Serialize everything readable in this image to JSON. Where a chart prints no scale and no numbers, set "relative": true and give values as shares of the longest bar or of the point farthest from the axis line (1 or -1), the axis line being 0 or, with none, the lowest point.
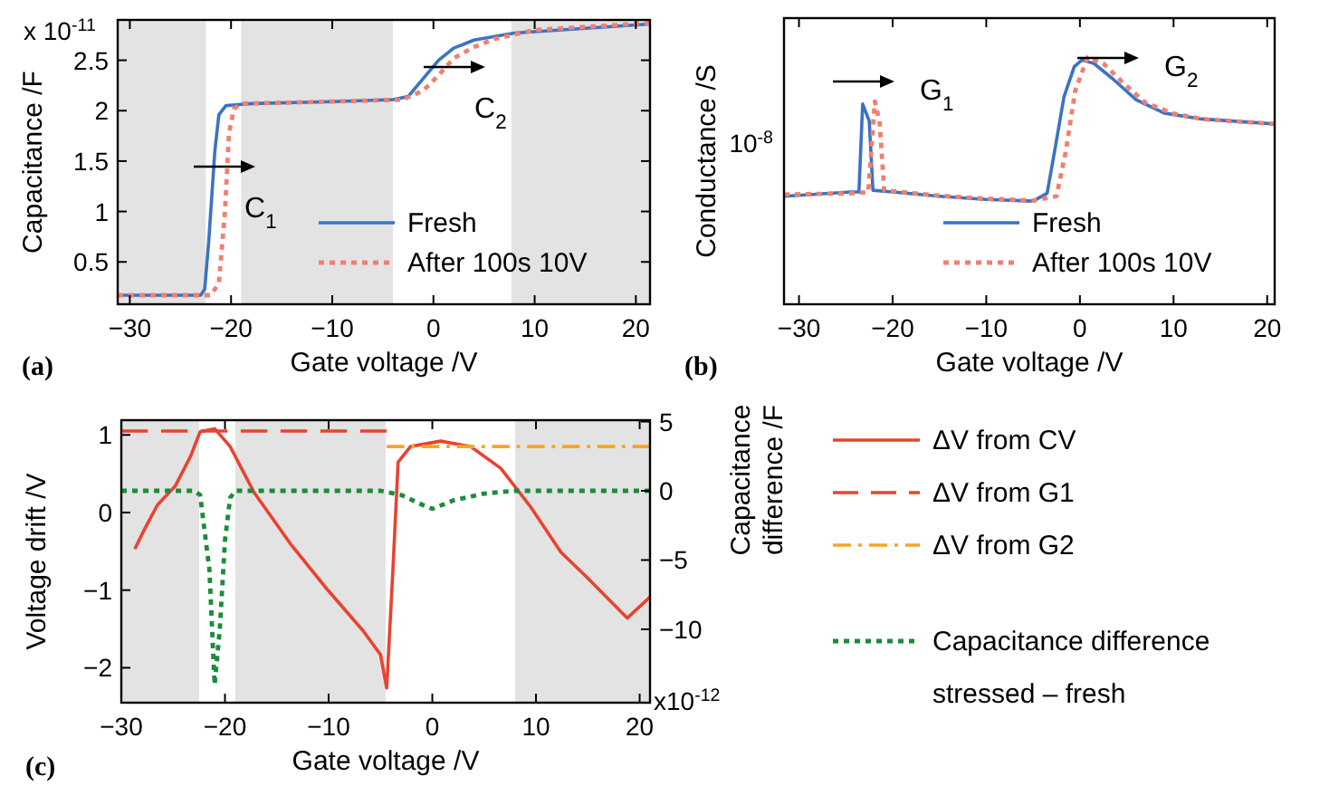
{
  "chart_data": [
    {
      "type": "line",
      "xlabel": "Gate voltage /V",
      "ylabel": "Capacitance /F",
      "xlim": [
        -31.2,
        21.4
      ],
      "ylim": [
        0.08,
        2.9
      ],
      "xticks": [
        -30,
        -20,
        -10,
        0,
        10,
        20
      ],
      "yticks": [
        0.5,
        1,
        1.5,
        2,
        2.5
      ],
      "legend": "bottom right",
      "annotations": [
        "(a)",
        "x 10$^{-11}$",
        "C$_{1}$",
        "C$_{2}$"
      ],
      "bands": [
        {
          "axis": "x",
          "from": -31.2,
          "to": -22.5,
          "color": "#e3e3e3"
        },
        {
          "axis": "x",
          "from": -19,
          "to": -4,
          "color": "#e3e3e3"
        },
        {
          "axis": "x",
          "from": 7.7,
          "to": 21.4,
          "color": "#e3e3e3"
        }
      ],
      "series": [
        {
          "name": "Fresh",
          "color": "#3a73c4",
          "line_style": "solid",
          "x": [
            -31.2,
            -23,
            -22.6,
            -22.2,
            -21.6,
            -21.2,
            -20.5,
            -18,
            -10,
            -4,
            -2.5,
            -1,
            0.5,
            2,
            4,
            8,
            14,
            21.4
          ],
          "values": [
            0.17,
            0.17,
            0.23,
            0.71,
            1.6,
            1.96,
            2.05,
            2.07,
            2.09,
            2.11,
            2.14,
            2.32,
            2.5,
            2.62,
            2.7,
            2.77,
            2.81,
            2.86
          ]
        },
        {
          "name": "After 100s 10V",
          "color": "#f08070",
          "line_style": "dotted",
          "x": [
            -31.2,
            -22,
            -21.2,
            -20.6,
            -20.2,
            -19.7,
            -19,
            -10,
            -3,
            -1,
            0.5,
            2,
            4,
            6,
            10,
            21.4
          ],
          "values": [
            0.17,
            0.17,
            0.29,
            1.0,
            1.78,
            2.02,
            2.07,
            2.09,
            2.11,
            2.2,
            2.35,
            2.52,
            2.63,
            2.71,
            2.8,
            2.87
          ]
        }
      ]
    },
    {
      "type": "line",
      "xlabel": "Gate voltage /V",
      "ylabel": "Conductance /S",
      "relative": true,
      "xlim": [
        -31.6,
        20.8
      ],
      "xticks": [
        -30,
        -20,
        -10,
        0,
        10,
        20
      ],
      "legend": "bottom right",
      "annotations": [
        "(b)",
        "10$^{-8}$",
        "G$_{1}$",
        "G$_{2}$"
      ],
      "series": [
        {
          "name": "Fresh",
          "color": "#3a73c4",
          "line_style": "solid",
          "x": [
            -31.6,
            -24.5,
            -23.6,
            -23.2,
            -22.5,
            -22.1,
            -20,
            -15,
            -10,
            -5,
            -3.5,
            -2.7,
            -1.7,
            -0.6,
            0.2,
            1.5,
            3.5,
            6,
            9,
            13,
            20.8
          ],
          "values": [
            0.438,
            0.455,
            0.455,
            0.812,
            0.743,
            0.462,
            0.455,
            0.438,
            0.425,
            0.418,
            0.45,
            0.621,
            0.841,
            0.963,
            0.99,
            0.976,
            0.914,
            0.829,
            0.775,
            0.751,
            0.731
          ]
        },
        {
          "name": "After 100s 10V",
          "color": "#f08070",
          "line_style": "dotted",
          "x": [
            -31.6,
            -24,
            -22.6,
            -21.9,
            -21.4,
            -20.9,
            -15,
            -10,
            -5,
            -2.5,
            -1.5,
            -0.5,
            0.8,
            2.5,
            4.5,
            7,
            10,
            13,
            20.8
          ],
          "values": [
            0.445,
            0.45,
            0.455,
            0.822,
            0.743,
            0.462,
            0.44,
            0.428,
            0.42,
            0.438,
            0.621,
            0.866,
            1,
            0.976,
            0.902,
            0.817,
            0.773,
            0.751,
            0.731
          ]
        }
      ]
    },
    {
      "type": "line",
      "xlabel": "Gate voltage /V",
      "ylabel": "Voltage drift /V",
      "y2label": "Capacitance difference /F",
      "xlim": [
        -30,
        21
      ],
      "ylim": [
        -2.45,
        1.19
      ],
      "y2lim": [
        -15.3,
        5.1
      ],
      "xticks": [
        -30,
        -20,
        -10,
        0,
        10,
        20
      ],
      "yticks": [
        -2,
        -1,
        0,
        1
      ],
      "y2ticks": [
        -10,
        -5,
        0,
        5
      ],
      "legend": "right",
      "annotations": [
        "(c)",
        "x10$^{-12}$"
      ],
      "bands": [
        {
          "axis": "x",
          "from": -30,
          "to": -22.5,
          "color": "#e3e3e3"
        },
        {
          "axis": "x",
          "from": -19,
          "to": -4.5,
          "color": "#e3e3e3"
        },
        {
          "axis": "x",
          "from": 8,
          "to": 21,
          "color": "#e3e3e3"
        }
      ],
      "series": [
        {
          "name": "ΔV from CV",
          "color": "#e8432f",
          "line_style": "solid",
          "x": [
            -28.7,
            -27.7,
            -26.5,
            -24.8,
            -23.3,
            -22.4,
            -21,
            -19.5,
            -17.2,
            -13.7,
            -10.2,
            -6.7,
            -5,
            -4.4,
            -3.8,
            -3.3,
            -2.1,
            0.8,
            3.7,
            6.6,
            9.5,
            12.4,
            14.8,
            18.8,
            21
          ],
          "values": [
            -0.47,
            -0.2,
            0.1,
            0.34,
            0.73,
            1.04,
            1.08,
            0.85,
            0.26,
            -0.4,
            -0.98,
            -1.52,
            -1.83,
            -2.26,
            -0.74,
            0.65,
            0.85,
            0.92,
            0.85,
            0.57,
            0.07,
            -0.51,
            -0.82,
            -1.36,
            -1.09
          ]
        },
        {
          "name": "ΔV from G1",
          "color": "#e8432f",
          "line_style": "dashed",
          "x": [
            -30,
            -4.4
          ],
          "values": [
            1.05,
            1.05
          ]
        },
        {
          "name": "ΔV from G2",
          "color": "#f5a623",
          "line_style": "dashdot",
          "x": [
            -4.4,
            21
          ],
          "values": [
            0.85,
            0.85
          ]
        },
        {
          "name": "Capacitance difference stressed – fresh",
          "color": "#1a8c3a",
          "line_style": "dotted",
          "axis": "y2",
          "x": [
            -30,
            -23,
            -22.4,
            -21.5,
            -21,
            -20.5,
            -20,
            -19.5,
            -19,
            -5,
            -3,
            -1,
            0,
            2,
            5,
            8,
            21
          ],
          "values": [
            0,
            0,
            -0.3,
            -5.7,
            -14,
            -10,
            -3.6,
            -0.5,
            0,
            0,
            -0.3,
            -1,
            -1.3,
            -0.7,
            -0.2,
            0,
            0
          ]
        }
      ]
    }
  ]
}
